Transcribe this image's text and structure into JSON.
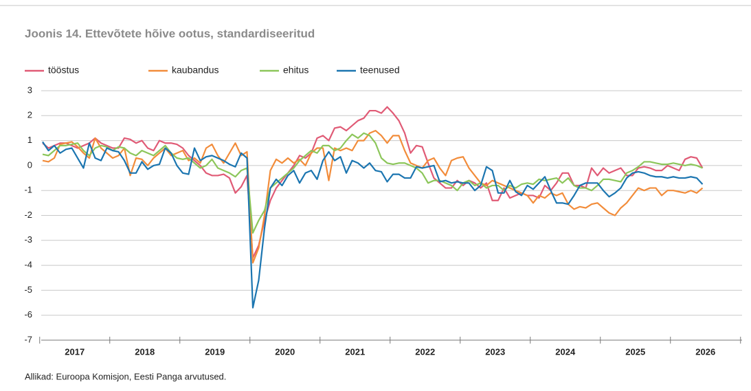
{
  "chart_data": {
    "type": "line",
    "title": "Joonis 14. Ettevõtete hõive ootus, standardiseeritud",
    "source": "Allikad: Euroopa Komisjon, Eesti Panga arvutused.",
    "categories": [
      null,
      null,
      null,
      null,
      null,
      "2017",
      null,
      null,
      null,
      null,
      null,
      null,
      null,
      null,
      null,
      null,
      null,
      "2018",
      null,
      null,
      null,
      null,
      null,
      null,
      null,
      null,
      null,
      null,
      null,
      "2019",
      null,
      null,
      null,
      null,
      null,
      null,
      null,
      null,
      null,
      null,
      null,
      "2020",
      null,
      null,
      null,
      null,
      null,
      null,
      null,
      null,
      null,
      null,
      null,
      "2021",
      null,
      null,
      null,
      null,
      null,
      null,
      null,
      null,
      null,
      null,
      null,
      "2022",
      null,
      null,
      null,
      null,
      null,
      null,
      null,
      null,
      null,
      null,
      null,
      "2023",
      null,
      null,
      null,
      null,
      null,
      null,
      null,
      null,
      null,
      null,
      null,
      "2024",
      null,
      null,
      null,
      null,
      null,
      null,
      null,
      null,
      null,
      null,
      null,
      "2025",
      null,
      null,
      null,
      null,
      null,
      null,
      null,
      null,
      null,
      null,
      null,
      "2026"
    ],
    "ylim": [
      -7,
      3
    ],
    "yticks": [
      -7,
      -6,
      -5,
      -4,
      -3,
      -2,
      -1,
      0,
      1,
      2,
      3
    ],
    "grid": true,
    "legend": "top",
    "series": [
      {
        "name": "tööstus",
        "color": "#e05a75",
        "values": [
          0.9,
          0.7,
          0.8,
          0.9,
          0.9,
          0.8,
          0.7,
          0.8,
          0.9,
          1.1,
          0.9,
          0.8,
          0.7,
          0.7,
          1.1,
          1.05,
          0.9,
          1.0,
          0.7,
          0.6,
          1.0,
          0.9,
          0.9,
          0.85,
          0.7,
          0.4,
          0.2,
          0.0,
          -0.3,
          -0.4,
          -0.4,
          -0.35,
          -0.5,
          -1.1,
          -0.85,
          -0.4,
          -3.7,
          -3.2,
          -2.2,
          -1.4,
          -0.9,
          -0.6,
          -0.3,
          0.0,
          0.4,
          0.3,
          0.5,
          1.1,
          1.2,
          1.0,
          1.5,
          1.55,
          1.4,
          1.6,
          1.8,
          1.9,
          2.2,
          2.2,
          2.1,
          2.35,
          2.1,
          1.8,
          1.3,
          0.5,
          0.8,
          0.75,
          0.1,
          -0.5,
          -0.7,
          -0.9,
          -0.9,
          -0.6,
          -0.8,
          -0.6,
          -0.7,
          -0.9,
          -0.7,
          -1.4,
          -1.4,
          -0.9,
          -1.3,
          -1.2,
          -1.1,
          -1.2,
          -1.2,
          -1.3,
          -0.8,
          -1.0,
          -0.7,
          -0.3,
          -0.3,
          -0.8,
          -0.8,
          -0.9,
          -0.1,
          -0.4,
          -0.1,
          -0.3,
          -0.2,
          -0.1,
          -0.4,
          -0.4,
          -0.1,
          -0.05,
          -0.1,
          -0.2,
          -0.2,
          0.0,
          -0.1,
          -0.2,
          0.25,
          0.35,
          0.3,
          -0.1
        ]
      },
      {
        "name": "kaubandus",
        "color": "#f28c3a",
        "values": [
          0.2,
          0.15,
          0.3,
          0.85,
          0.9,
          0.95,
          0.75,
          0.5,
          0.3,
          1.1,
          0.7,
          0.5,
          0.3,
          0.4,
          0.7,
          -0.4,
          0.3,
          0.25,
          0.0,
          0.3,
          0.5,
          0.7,
          0.4,
          0.5,
          0.6,
          0.2,
          0.3,
          0.1,
          0.7,
          0.85,
          0.4,
          0.1,
          0.5,
          0.9,
          0.4,
          0.55,
          -3.9,
          -3.3,
          -2.0,
          -0.2,
          0.25,
          0.1,
          0.3,
          0.1,
          0.25,
          0.0,
          0.5,
          0.7,
          0.7,
          -0.6,
          0.7,
          0.6,
          0.7,
          0.6,
          1.0,
          1.0,
          1.3,
          1.4,
          1.2,
          0.9,
          1.2,
          1.2,
          0.6,
          0.1,
          0.0,
          -0.1,
          0.2,
          0.3,
          -0.1,
          -0.4,
          0.2,
          0.3,
          0.35,
          -0.1,
          -0.4,
          -0.7,
          -0.8,
          -0.6,
          -0.7,
          -0.8,
          -0.9,
          -1.0,
          -1.1,
          -1.2,
          -1.5,
          -1.2,
          -1.3,
          -1.1,
          -1.2,
          -1.1,
          -1.55,
          -1.75,
          -1.65,
          -1.7,
          -1.55,
          -1.5,
          -1.7,
          -1.9,
          -2.0,
          -1.7,
          -1.5,
          -1.2,
          -0.9,
          -1.0,
          -0.9,
          -0.9,
          -1.2,
          -1.0,
          -1.0,
          -1.05,
          -1.1,
          -1.0,
          -1.1,
          -0.9
        ]
      },
      {
        "name": "ehitus",
        "color": "#8cc65a",
        "values": [
          0.45,
          0.4,
          0.6,
          0.8,
          0.8,
          0.85,
          0.9,
          0.6,
          0.4,
          0.7,
          0.8,
          0.75,
          0.6,
          0.75,
          0.7,
          0.5,
          0.4,
          0.6,
          0.5,
          0.4,
          0.6,
          0.8,
          0.5,
          0.3,
          0.25,
          0.3,
          0.1,
          -0.1,
          0.0,
          0.25,
          -0.1,
          -0.2,
          -0.3,
          -0.45,
          -0.2,
          -0.1,
          -2.7,
          -2.2,
          -1.8,
          -0.9,
          -0.7,
          -0.5,
          -0.3,
          -0.1,
          0.2,
          0.4,
          0.6,
          0.5,
          0.8,
          0.8,
          0.6,
          0.7,
          1.0,
          1.25,
          1.1,
          1.3,
          1.2,
          0.9,
          0.3,
          0.1,
          0.05,
          0.1,
          0.1,
          0.0,
          -0.1,
          -0.3,
          -0.7,
          -0.6,
          -0.6,
          -0.7,
          -0.8,
          -1.0,
          -0.7,
          -0.6,
          -0.8,
          -0.7,
          -0.9,
          -0.8,
          -0.8,
          -1.0,
          -0.8,
          -0.9,
          -0.75,
          -0.7,
          -0.75,
          -0.55,
          -0.6,
          -0.55,
          -0.5,
          -0.7,
          -0.5,
          -0.8,
          -0.9,
          -0.9,
          -1.0,
          -0.8,
          -0.55,
          -0.55,
          -0.6,
          -0.65,
          -0.3,
          -0.2,
          -0.05,
          0.15,
          0.15,
          0.1,
          0.05,
          0.05,
          0.1,
          0.05,
          0.0,
          0.05,
          0.0,
          -0.1
        ]
      },
      {
        "name": "teenused",
        "color": "#1b75b0",
        "values": [
          0.95,
          0.6,
          0.8,
          0.5,
          0.65,
          0.7,
          0.3,
          -0.1,
          0.9,
          0.3,
          0.2,
          0.7,
          0.6,
          0.55,
          0.2,
          -0.3,
          -0.3,
          0.15,
          -0.15,
          0.0,
          0.05,
          0.7,
          0.5,
          0.0,
          -0.3,
          -0.35,
          0.7,
          0.2,
          0.35,
          0.4,
          0.3,
          0.2,
          0.05,
          -0.05,
          0.5,
          0.3,
          -5.7,
          -4.6,
          -2.5,
          -0.9,
          -0.55,
          -0.8,
          -0.4,
          -0.2,
          -0.7,
          -0.3,
          -0.2,
          -0.55,
          0.2,
          0.55,
          0.2,
          0.35,
          -0.3,
          0.2,
          0.1,
          -0.1,
          0.1,
          -0.2,
          -0.25,
          -0.65,
          -0.35,
          -0.35,
          -0.5,
          -0.5,
          -0.05,
          -0.1,
          -0.05,
          0.0,
          -0.65,
          -0.6,
          -0.7,
          -0.65,
          -0.7,
          -0.7,
          -1.0,
          -0.8,
          -0.05,
          -0.2,
          -1.1,
          -1.1,
          -0.6,
          -1.05,
          -1.2,
          -0.8,
          -0.95,
          -0.7,
          -0.45,
          -1.0,
          -1.5,
          -1.5,
          -1.55,
          -1.2,
          -0.8,
          -0.7,
          -0.7,
          -0.7,
          -1.0,
          -1.25,
          -1.1,
          -0.9,
          -0.5,
          -0.3,
          -0.25,
          -0.3,
          -0.4,
          -0.45,
          -0.45,
          -0.5,
          -0.45,
          -0.5,
          -0.5,
          -0.45,
          -0.5,
          -0.75
        ]
      }
    ]
  }
}
